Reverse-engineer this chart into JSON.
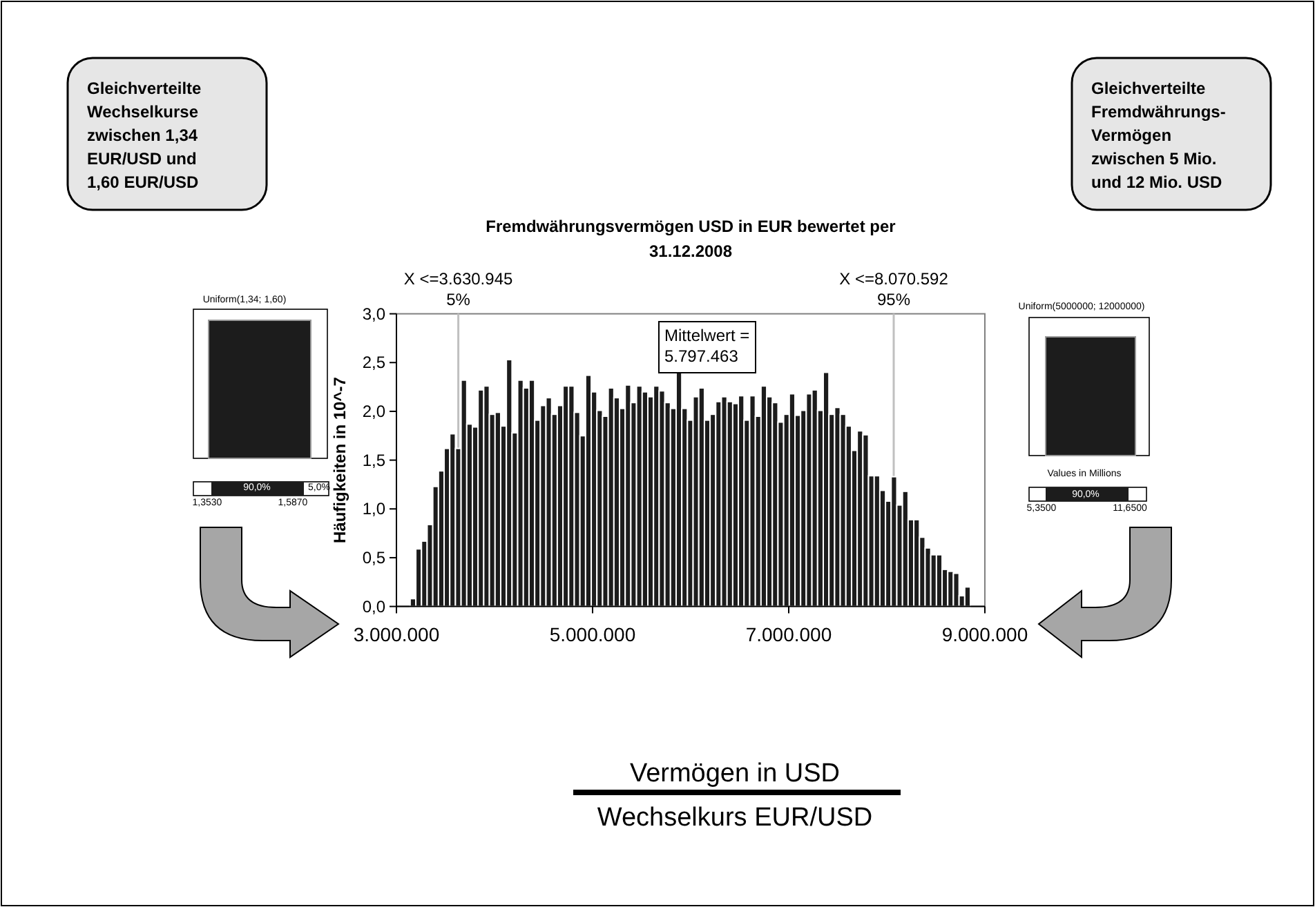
{
  "chart_data": {
    "type": "histogram",
    "title": "Fremdwährungsvermögen USD in EUR bewertet per 31.12.2008",
    "ylabel": "Häufigkeiten in 10^-7",
    "bins": [
      3140000,
      3197700,
      3255400,
      3313100,
      3370800,
      3428500,
      3486200,
      3543900,
      3601600,
      3659300,
      3717000,
      3774700,
      3832400,
      3890100,
      3947800,
      4005500,
      4063200,
      4120900,
      4178600,
      4236300,
      4294000,
      4351700,
      4409400,
      4467100,
      4524800,
      4582500,
      4640200,
      4697900,
      4755600,
      4813300,
      4871000,
      4928700,
      4986400,
      5044100,
      5101800,
      5159500,
      5217200,
      5274900,
      5332600,
      5390300,
      5448000,
      5505700,
      5563400,
      5621100,
      5678800,
      5736500,
      5794200,
      5851900,
      5909600,
      5967300,
      6025000,
      6082700,
      6140400,
      6198100,
      6255800,
      6313500,
      6371200,
      6428900,
      6486600,
      6544300,
      6602000,
      6659700,
      6717400,
      6775100,
      6832800,
      6890500,
      6948200,
      7005900,
      7063600,
      7121300,
      7179000,
      7236700,
      7294400,
      7352100,
      7409800,
      7467500,
      7525200,
      7582900,
      7640600,
      7698300,
      7756000,
      7813700,
      7871400,
      7929100,
      7986800,
      8044500,
      8102200,
      8159900,
      8217600,
      8275300,
      8333000,
      8390700,
      8448400,
      8506100,
      8563800,
      8621500,
      8679200,
      8736900,
      8794600,
      8852300
    ],
    "values": [
      0.08,
      0.59,
      0.67,
      0.84,
      1.23,
      1.39,
      1.62,
      1.77,
      1.62,
      2.32,
      1.87,
      1.84,
      2.22,
      2.26,
      1.97,
      1.99,
      1.85,
      2.53,
      1.78,
      2.32,
      2.24,
      2.32,
      1.91,
      2.06,
      2.14,
      1.97,
      2.06,
      2.26,
      2.26,
      1.99,
      1.75,
      2.37,
      2.2,
      2.01,
      1.95,
      2.24,
      2.14,
      2.03,
      2.27,
      2.09,
      2.26,
      2.2,
      2.15,
      2.26,
      2.21,
      2.09,
      2.03,
      2.4,
      2.03,
      1.91,
      2.15,
      2.24,
      1.91,
      1.97,
      2.1,
      2.15,
      2.1,
      2.08,
      2.16,
      1.91,
      2.16,
      1.95,
      2.26,
      2.15,
      2.09,
      1.89,
      1.97,
      2.18,
      1.96,
      2.01,
      2.18,
      2.22,
      2.01,
      2.4,
      1.97,
      2.04,
      1.97,
      1.85,
      1.6,
      1.8,
      1.76,
      1.34,
      1.34,
      1.19,
      1.08,
      1.33,
      1.04,
      1.18,
      0.89,
      0.89,
      0.71,
      0.6,
      0.53,
      0.53,
      0.38,
      0.36,
      0.34,
      0.11,
      0.2
    ],
    "color": "#1c1c1c",
    "xlim": [
      3000000,
      9000000
    ],
    "xticks": [
      {
        "value": 3000000,
        "label": "3.000.000"
      },
      {
        "value": 5000000,
        "label": "5.000.000"
      },
      {
        "value": 7000000,
        "label": "7.000.000"
      },
      {
        "value": 9000000,
        "label": "9.000.000"
      }
    ],
    "ylim": [
      0,
      3
    ],
    "yticks": [
      {
        "value": 0,
        "label": "0,0"
      },
      {
        "value": 0.5,
        "label": "0,5"
      },
      {
        "value": 1,
        "label": "1,0"
      },
      {
        "value": 1.5,
        "label": "1,5"
      },
      {
        "value": 2,
        "label": "2,0"
      },
      {
        "value": 2.5,
        "label": "2,5"
      },
      {
        "value": 3,
        "label": "3,0"
      }
    ],
    "ref_lines": [
      {
        "axis": "x",
        "value": 3630945,
        "label": "X <=3.630.945 5%",
        "color": "#c0c0c0"
      },
      {
        "axis": "x",
        "value": 8070592,
        "label": "X <=8.070.592 95%",
        "color": "#c0c0c0"
      }
    ],
    "annotations": [
      "Gleichverteilte Wechselkurse zwischen 1,34 EUR/USD und 1,60 EUR/USD",
      "Gleichverteilte Fremdwährungs-Vermögen zwischen 5 Mio. und 12 Mio. USD",
      "Vermögen in USD",
      "Wechselkurs EUR/USD",
      "Mittelwert = 5.797.463",
      "Uniform(1,34; 1,60)",
      "90,0%",
      "5,0%",
      "1,3530",
      "1,5870",
      "Uniform(5000000; 12000000)",
      "Values in Millions",
      "90,0%",
      "5,3500",
      "11,6500"
    ]
  }
}
